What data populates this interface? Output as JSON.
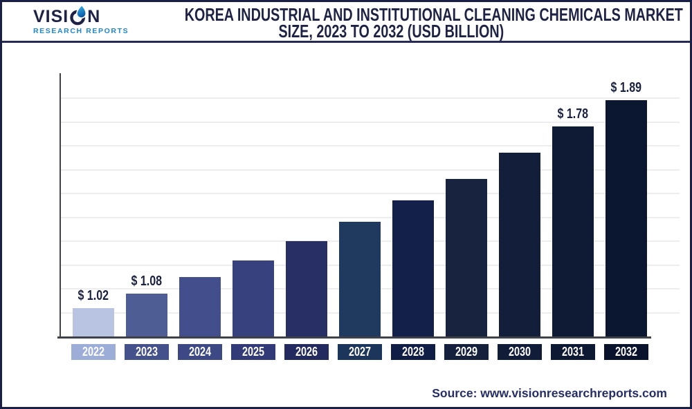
{
  "header": {
    "logo": {
      "word_pre": "VISI",
      "word_post": "N",
      "subtitle": "RESEARCH REPORTS"
    },
    "title_line1": "KOREA INDUSTRIAL AND INSTITUTIONAL CLEANING CHEMICALS MARKET",
    "title_line2": "SIZE, 2023 TO 2032 (USD BILLION)"
  },
  "footer": {
    "source": "Source: www.visionresearchreports.com"
  },
  "colors": {
    "title_navy": "#1e2345",
    "border": "#1a2045",
    "divider": "#262a55",
    "axis": "#3f4149",
    "gridline": "#ededf0",
    "value_label": "#1b2240",
    "source_text": "#252e67",
    "logo_blue": "#1f86d0",
    "logo_drop_light": "#3fc0ef",
    "logo_drop_dark": "#0a57a8",
    "year_text": "#ffffff"
  },
  "chart_data": {
    "type": "bar",
    "title": "Korea Industrial and Institutional Cleaning Chemicals Market Size, 2023 to 2032 (USD Billion)",
    "unit": "USD Billion",
    "categories": [
      "2022",
      "2023",
      "2024",
      "2025",
      "2026",
      "2027",
      "2028",
      "2029",
      "2030",
      "2031",
      "2032"
    ],
    "values": [
      1.02,
      1.08,
      1.15,
      1.22,
      1.3,
      1.38,
      1.47,
      1.56,
      1.67,
      1.78,
      1.89
    ],
    "value_labels": [
      "$ 1.02",
      "$ 1.08",
      "",
      "",
      "",
      "",
      "",
      "",
      "",
      "$ 1.78",
      "$ 1.89"
    ],
    "bar_colors": [
      "#b9c4e3",
      "#4e5d94",
      "#424f8c",
      "#37417d",
      "#272f64",
      "#20395f",
      "#13214a",
      "#17233f",
      "#131e3b",
      "#0f1a35",
      "#0b1630"
    ],
    "tick_colors": [
      "#9cadd8",
      "#44518b",
      "#3c4985",
      "#323b77",
      "#232b5e",
      "#1c355b",
      "#101e46",
      "#14203c",
      "#111c38",
      "#0d1832",
      "#09142c"
    ],
    "xlabel": "",
    "ylabel": "",
    "ylim": [
      0.9,
      2.02
    ],
    "gridline_step": 0.1,
    "grid": "horizontal",
    "legend": "none"
  }
}
